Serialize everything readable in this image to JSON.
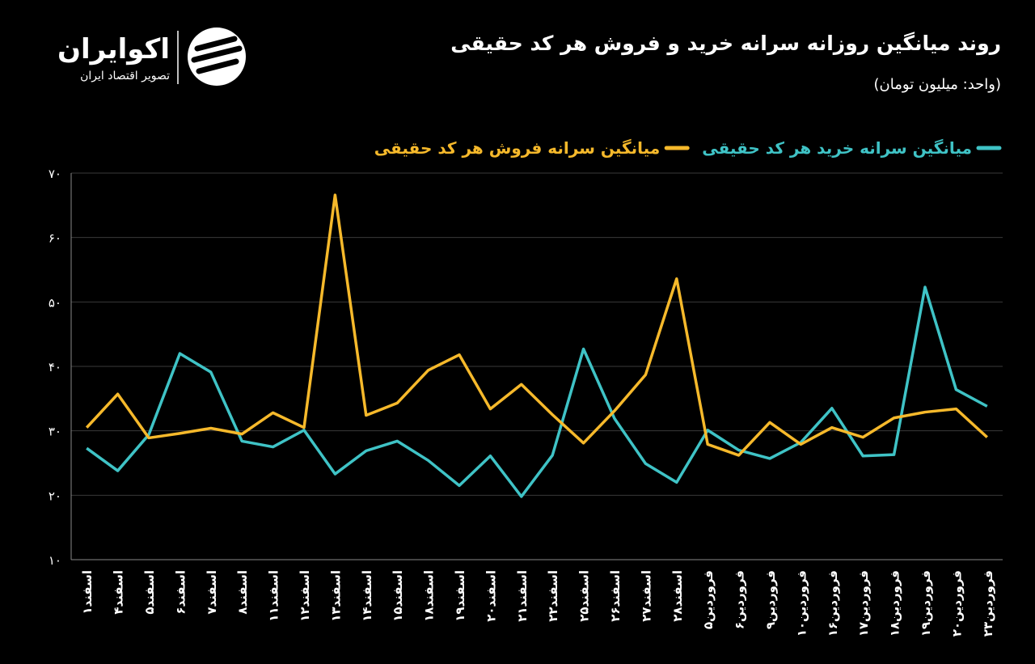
{
  "brand": {
    "name": "اکوایران",
    "tagline": "تصویر اقتصاد ایران"
  },
  "chart_data": {
    "type": "line",
    "title": "روند میانگین روزانه سرانه خرید و فروش هر کد حقیقی",
    "subtitle": "(واحد: میلیون تومان)",
    "categories": [
      "اسفند۱",
      "اسفند۴",
      "اسفند۵",
      "اسفند۶",
      "اسفند۷",
      "اسفند۸",
      "اسفند۱۱",
      "اسفند۱۲",
      "اسفند۱۳",
      "اسفند۱۴",
      "اسفند۱۵",
      "اسفند۱۸",
      "اسفند۱۹",
      "اسفند۲۰",
      "اسفند۲۱",
      "اسفند۲۲",
      "اسفند۲۵",
      "اسفند۲۶",
      "اسفند۲۷",
      "اسفند۲۸",
      "فروردین۵",
      "فروردین۶",
      "فروردین۹",
      "فروردین۱۰",
      "فروردین۱۶",
      "فروردین۱۷",
      "فروردین۱۸",
      "فروردین۱۹",
      "فروردین۲۰",
      "فروردین۲۳"
    ],
    "series": [
      {
        "name": "میانگین سرانه خرید هر کد حقیقی",
        "color": "#3fc3c6",
        "values": [
          27.3,
          23.8,
          29.4,
          42,
          39.1,
          28.4,
          27.5,
          30.1,
          23.3,
          26.9,
          28.4,
          25.4,
          21.5,
          26.1,
          19.8,
          26.2,
          42.7,
          31.9,
          24.9,
          22,
          30.1,
          27,
          25.7,
          28.2,
          33.5,
          26.1,
          26.3,
          52.3,
          36.4,
          33.8
        ]
      },
      {
        "name": "میانگین سرانه فروش هر کد حقیقی",
        "color": "#f6b92b",
        "values": [
          30.5,
          35.7,
          28.9,
          29.6,
          30.4,
          29.5,
          32.8,
          30.5,
          66.6,
          32.4,
          34.3,
          39.4,
          41.8,
          33.4,
          37.2,
          32.5,
          28.1,
          33.1,
          38.7,
          53.6,
          27.9,
          26.2,
          31.3,
          27.9,
          30.5,
          29,
          32,
          32.9,
          33.4,
          29
        ]
      }
    ],
    "ylim": [
      10,
      70
    ],
    "yticks": [
      {
        "value": 10,
        "label": "۱۰"
      },
      {
        "value": 20,
        "label": "۲۰"
      },
      {
        "value": 30,
        "label": "۳۰"
      },
      {
        "value": 40,
        "label": "۴۰"
      },
      {
        "value": 50,
        "label": "۵۰"
      },
      {
        "value": 60,
        "label": "۶۰"
      },
      {
        "value": 70,
        "label": "۷۰"
      }
    ],
    "grid": true
  }
}
